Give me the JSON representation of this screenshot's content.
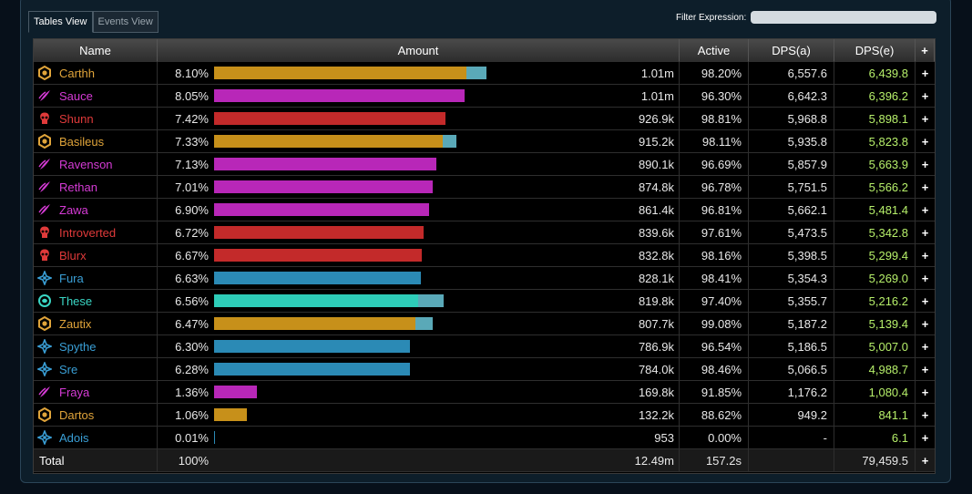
{
  "tabs": [
    {
      "label": "Tables View",
      "active": true
    },
    {
      "label": "Events View",
      "active": false
    }
  ],
  "filter": {
    "label": "Filter Expression:",
    "value": ""
  },
  "headers": {
    "name": "Name",
    "amount": "Amount",
    "active": "Active",
    "dpsa": "DPS(a)",
    "dpse": "DPS(e)",
    "plus": "+"
  },
  "max_fraction": 0.081,
  "rows": [
    {
      "name": "Carthh",
      "class": "guardian",
      "color": "#e0a43a",
      "pct": "8.10%",
      "fraction": 0.081,
      "absorb_fraction": 0.0065,
      "bar_color": "#c7901a",
      "amount": "1.01m",
      "active": "98.20%",
      "dpsa": "6,557.6",
      "dpse": "6,439.8"
    },
    {
      "name": "Sauce",
      "class": "mesmer",
      "color": "#d63bd6",
      "pct": "8.05%",
      "fraction": 0.0805,
      "absorb_fraction": 0,
      "bar_color": "#b827b8",
      "amount": "1.01m",
      "active": "96.30%",
      "dpsa": "6,642.3",
      "dpse": "6,396.2"
    },
    {
      "name": "Shunn",
      "class": "necromancer",
      "color": "#e03a3a",
      "pct": "7.42%",
      "fraction": 0.0742,
      "absorb_fraction": 0,
      "bar_color": "#c32a2a",
      "amount": "926.9k",
      "active": "98.81%",
      "dpsa": "5,968.8",
      "dpse": "5,898.1"
    },
    {
      "name": "Basileus",
      "class": "guardian",
      "color": "#e0a43a",
      "pct": "7.33%",
      "fraction": 0.0733,
      "absorb_fraction": 0.0045,
      "bar_color": "#c7901a",
      "amount": "915.2k",
      "active": "98.11%",
      "dpsa": "5,935.8",
      "dpse": "5,823.8"
    },
    {
      "name": "Ravenson",
      "class": "mesmer",
      "color": "#d63bd6",
      "pct": "7.13%",
      "fraction": 0.0713,
      "absorb_fraction": 0,
      "bar_color": "#b827b8",
      "amount": "890.1k",
      "active": "96.69%",
      "dpsa": "5,857.9",
      "dpse": "5,663.9"
    },
    {
      "name": "Rethan",
      "class": "mesmer",
      "color": "#d63bd6",
      "pct": "7.01%",
      "fraction": 0.0701,
      "absorb_fraction": 0,
      "bar_color": "#b827b8",
      "amount": "874.8k",
      "active": "96.78%",
      "dpsa": "5,751.5",
      "dpse": "5,566.2"
    },
    {
      "name": "Zawa",
      "class": "mesmer",
      "color": "#d63bd6",
      "pct": "6.90%",
      "fraction": 0.069,
      "absorb_fraction": 0,
      "bar_color": "#b827b8",
      "amount": "861.4k",
      "active": "96.81%",
      "dpsa": "5,662.1",
      "dpse": "5,481.4"
    },
    {
      "name": "Introverted",
      "class": "necromancer",
      "color": "#e03a3a",
      "pct": "6.72%",
      "fraction": 0.0672,
      "absorb_fraction": 0,
      "bar_color": "#c32a2a",
      "amount": "839.6k",
      "active": "97.61%",
      "dpsa": "5,473.5",
      "dpse": "5,342.8"
    },
    {
      "name": "Blurx",
      "class": "necromancer",
      "color": "#e03a3a",
      "pct": "6.67%",
      "fraction": 0.0667,
      "absorb_fraction": 0,
      "bar_color": "#c32a2a",
      "amount": "832.8k",
      "active": "98.16%",
      "dpsa": "5,398.5",
      "dpse": "5,299.4"
    },
    {
      "name": "Fura",
      "class": "elementalist",
      "color": "#3a9fd6",
      "pct": "6.63%",
      "fraction": 0.0663,
      "absorb_fraction": 0,
      "bar_color": "#2b8ab5",
      "amount": "828.1k",
      "active": "98.41%",
      "dpsa": "5,354.3",
      "dpse": "5,269.0"
    },
    {
      "name": "These",
      "class": "ranger",
      "color": "#3ad6c4",
      "pct": "6.56%",
      "fraction": 0.0656,
      "absorb_fraction": 0.0082,
      "bar_color": "#2ecdb9",
      "amount": "819.8k",
      "active": "97.40%",
      "dpsa": "5,355.7",
      "dpse": "5,216.2"
    },
    {
      "name": "Zautix",
      "class": "guardian",
      "color": "#e0a43a",
      "pct": "6.47%",
      "fraction": 0.0647,
      "absorb_fraction": 0.0057,
      "bar_color": "#c7901a",
      "amount": "807.7k",
      "active": "99.08%",
      "dpsa": "5,187.2",
      "dpse": "5,139.4"
    },
    {
      "name": "Spythe",
      "class": "elementalist",
      "color": "#3a9fd6",
      "pct": "6.30%",
      "fraction": 0.063,
      "absorb_fraction": 0,
      "bar_color": "#2b8ab5",
      "amount": "786.9k",
      "active": "96.54%",
      "dpsa": "5,186.5",
      "dpse": "5,007.0"
    },
    {
      "name": "Sre",
      "class": "elementalist",
      "color": "#3a9fd6",
      "pct": "6.28%",
      "fraction": 0.0628,
      "absorb_fraction": 0,
      "bar_color": "#2b8ab5",
      "amount": "784.0k",
      "active": "98.46%",
      "dpsa": "5,066.5",
      "dpse": "4,988.7"
    },
    {
      "name": "Fraya",
      "class": "mesmer",
      "color": "#d63bd6",
      "pct": "1.36%",
      "fraction": 0.0136,
      "absorb_fraction": 0,
      "bar_color": "#b827b8",
      "amount": "169.8k",
      "active": "91.85%",
      "dpsa": "1,176.2",
      "dpse": "1,080.4"
    },
    {
      "name": "Dartos",
      "class": "guardian",
      "color": "#e0a43a",
      "pct": "1.06%",
      "fraction": 0.0106,
      "absorb_fraction": 0,
      "bar_color": "#c7901a",
      "amount": "132.2k",
      "active": "88.62%",
      "dpsa": "949.2",
      "dpse": "841.1"
    },
    {
      "name": "Adois",
      "class": "elementalist",
      "color": "#3a9fd6",
      "pct": "0.01%",
      "fraction": 0.0001,
      "absorb_fraction": 0,
      "bar_color": "#2b8ab5",
      "amount": "953",
      "active": "0.00%",
      "dpsa": "-",
      "dpse": "6.1"
    }
  ],
  "total": {
    "name": "Total",
    "pct": "100%",
    "amount": "12.49m",
    "active": "157.2s",
    "dpsa": "",
    "dpse": "79,459.5"
  },
  "colors": {
    "absorb_bar": "#5aa9b8",
    "dpse_text": "#b6ef6a"
  }
}
